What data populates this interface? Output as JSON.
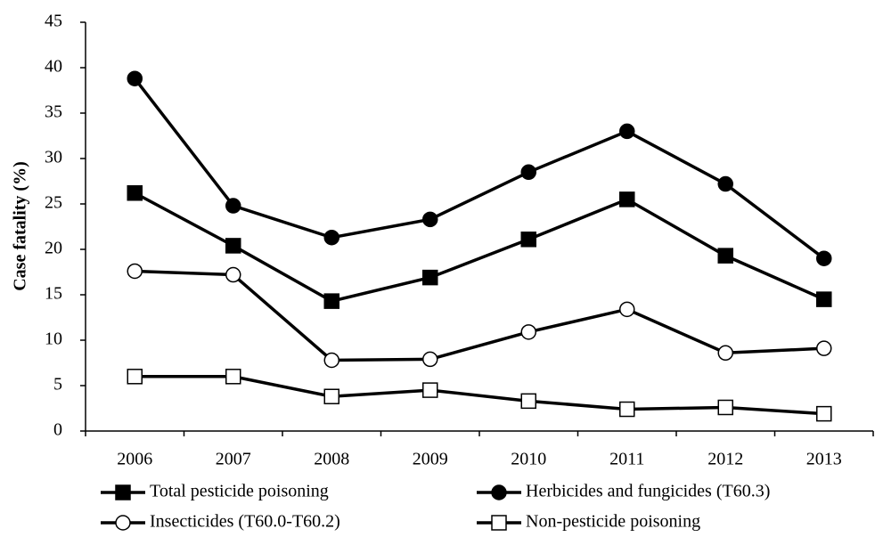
{
  "chart_data": {
    "type": "line",
    "y_label": "Case fatality (%)",
    "categories": [
      "2006",
      "2007",
      "2008",
      "2009",
      "2010",
      "2011",
      "2012",
      "2013"
    ],
    "series": [
      {
        "name": "Total pesticide poisoning",
        "color": "#000000",
        "marker": "square",
        "filled": true,
        "values": [
          26.2,
          20.4,
          14.3,
          16.9,
          21.1,
          25.5,
          19.3,
          14.5
        ]
      },
      {
        "name": "Herbicides and fungicides (T60.3)",
        "color": "#000000",
        "marker": "circle",
        "filled": true,
        "values": [
          38.8,
          24.8,
          21.3,
          23.3,
          28.5,
          33.0,
          27.2,
          19.0
        ]
      },
      {
        "name": "Insecticides (T60.0-T60.2)",
        "color": "#000000",
        "marker": "circle",
        "filled": false,
        "values": [
          17.6,
          17.2,
          7.8,
          7.9,
          10.9,
          13.4,
          8.6,
          9.1
        ]
      },
      {
        "name": "Non-pesticide poisoning",
        "color": "#000000",
        "marker": "square",
        "filled": false,
        "values": [
          6.0,
          6.0,
          3.8,
          4.5,
          3.3,
          2.4,
          2.6,
          1.9
        ]
      }
    ],
    "ylim": [
      0,
      45
    ],
    "yticks": [
      0,
      5,
      10,
      15,
      20,
      25,
      30,
      35,
      40,
      45
    ],
    "grid": false
  }
}
